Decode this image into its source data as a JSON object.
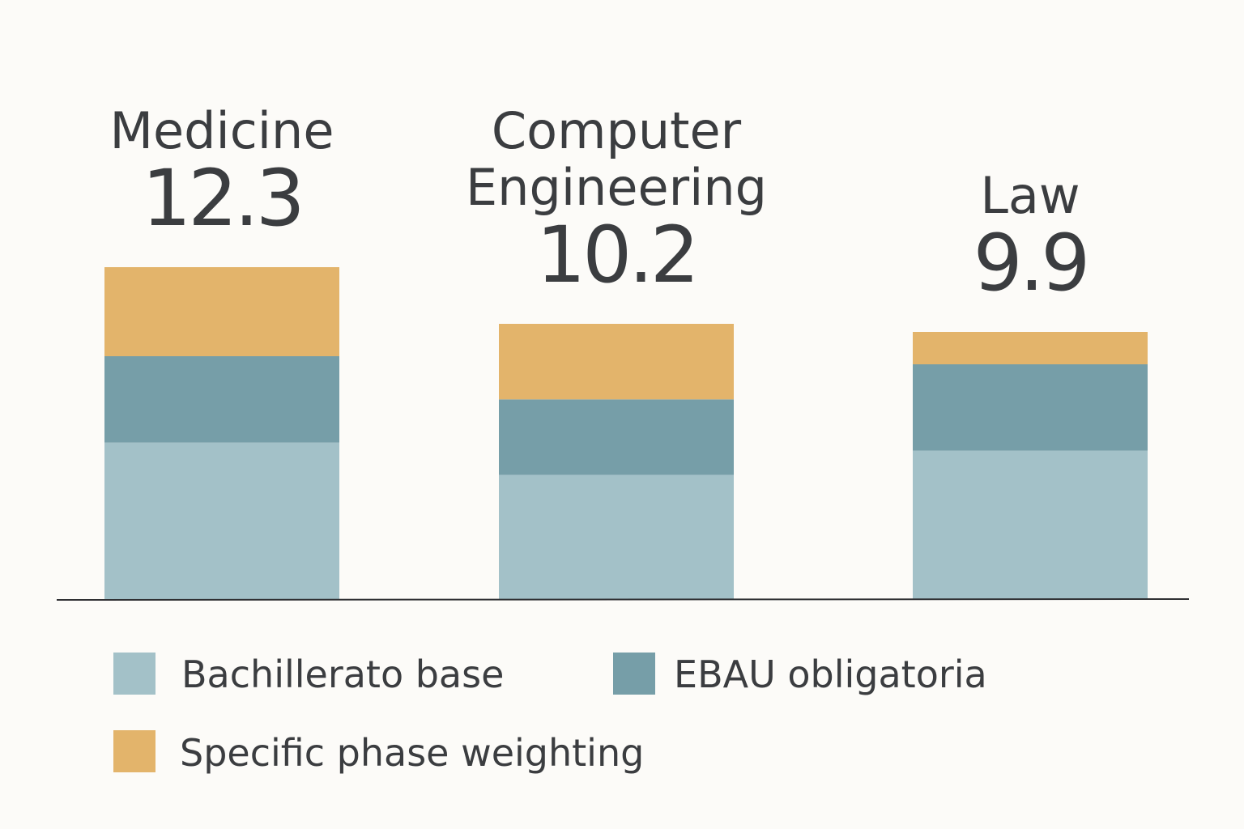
{
  "chart_data": {
    "type": "bar",
    "stacked": true,
    "categories": [
      [
        "Medicine"
      ],
      [
        "Computer",
        "Engineering"
      ],
      [
        "Law"
      ]
    ],
    "totals": [
      "12.3",
      "10.2",
      "9.9"
    ],
    "series": [
      {
        "name": "Bachillerato base",
        "color": "#a3c1c8",
        "values": [
          5.8,
          4.6,
          5.5
        ]
      },
      {
        "name": "EBAU obligatoria",
        "color": "#769ea8",
        "values": [
          3.2,
          2.8,
          3.2
        ]
      },
      {
        "name": "Specific phase weighting",
        "color": "#e3b46b",
        "values": [
          3.3,
          2.8,
          1.2
        ]
      }
    ],
    "legend_position": "bottom",
    "grid": false,
    "ylim": [
      0,
      12.3
    ]
  }
}
